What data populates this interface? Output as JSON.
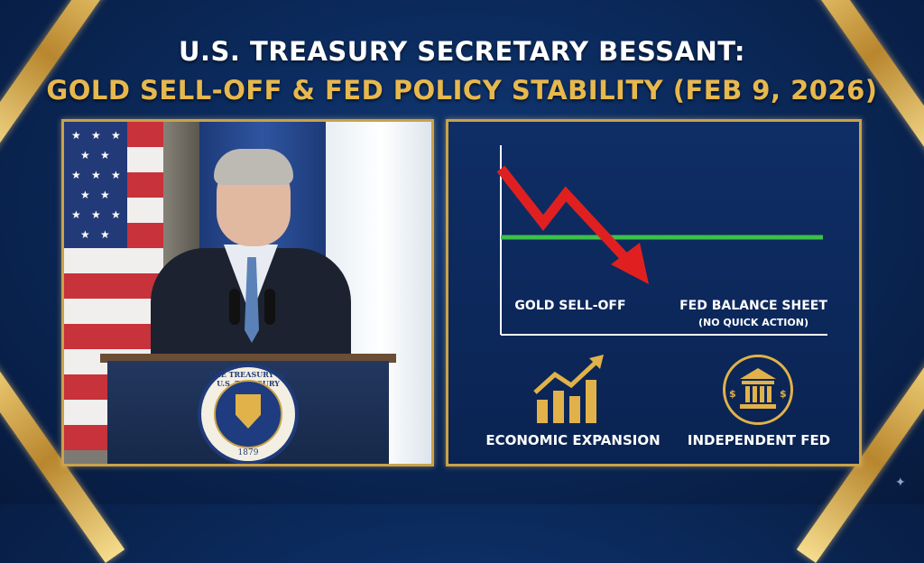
{
  "title": {
    "line1": "U.S. TREASURY SECRETARY BESSANT:",
    "line2": "GOLD SELL-OFF & FED POLICY STABILITY (FEB 9, 2026)"
  },
  "photo": {
    "seal_text": "THE TREASURY OF U.S. TREASURY",
    "seal_year": "1879"
  },
  "chart": {
    "label_left": "GOLD SELL-OFF",
    "label_right": "FED BALANCE SHEET",
    "label_right_sub": "(NO QUICK ACTION)"
  },
  "icons": {
    "left_label": "ECONOMIC EXPANSION",
    "right_label": "INDEPENDENT FED"
  },
  "colors": {
    "gold": "#c9a24a",
    "title_gold": "#e7b84e",
    "red_arrow": "#e02020",
    "green_line": "#3cc04a",
    "navy": "#0b2a5c"
  }
}
